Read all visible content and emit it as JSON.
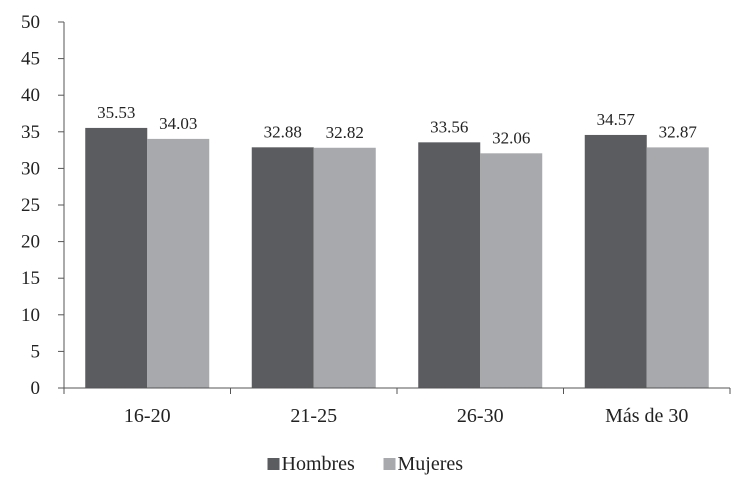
{
  "chart_data": {
    "type": "bar",
    "title": "",
    "xlabel": "",
    "ylabel": "",
    "categories": [
      "16-20",
      "21-25",
      "26-30",
      "Más de 30"
    ],
    "series": [
      {
        "name": "Hombres",
        "values": [
          35.53,
          32.88,
          33.56,
          34.57
        ],
        "color": "#5b5c60",
        "labels": [
          "35.53",
          "32.88",
          "33.56",
          "34.57"
        ]
      },
      {
        "name": "Mujeres",
        "values": [
          34.03,
          32.82,
          32.06,
          32.87
        ],
        "color": "#a7a9ac",
        "labels": [
          "34.03",
          "32.82",
          "32.06",
          "32.87"
        ]
      }
    ],
    "ylim": [
      0,
      50
    ],
    "yticks": [
      0,
      5,
      10,
      15,
      20,
      25,
      30,
      35,
      40,
      45,
      50
    ],
    "ytick_labels": [
      "0",
      "5",
      "10",
      "15",
      "20",
      "25",
      "30",
      "35",
      "40",
      "45",
      "50"
    ],
    "grid": false,
    "legend_position": "bottom-center",
    "axis_color": "#555555"
  }
}
